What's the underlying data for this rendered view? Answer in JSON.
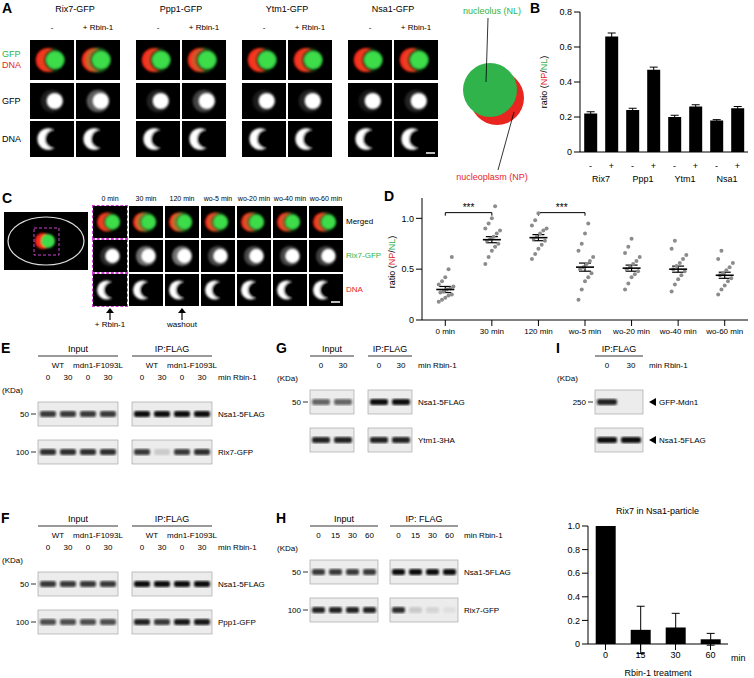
{
  "figure": {
    "A": {
      "label": "A",
      "columns": [
        {
          "title": "Rix7-GFP",
          "lanes": [
            "-",
            "+ Rbin-1"
          ]
        },
        {
          "title": "Ppp1-GFP",
          "lanes": [
            "-",
            "+ Rbin-1"
          ]
        },
        {
          "title": "Ytm1-GFP",
          "lanes": [
            "-",
            "+ Rbin-1"
          ]
        },
        {
          "title": "Nsa1-GFP",
          "lanes": [
            "-",
            "+ Rbin-1"
          ]
        }
      ],
      "rows": [
        [
          {
            "text": "GFP",
            "color": "#2fb34a"
          },
          {
            "text": "DNA",
            "color": "#e8251f"
          }
        ],
        [
          {
            "text": "GFP",
            "color": "#000000"
          }
        ],
        [
          {
            "text": "DNA",
            "color": "#000000"
          }
        ]
      ],
      "schematic": [
        {
          "text": "nucleolus (NL)",
          "color": "#2fb34a"
        },
        {
          "text": "nucleoplasm (NP)",
          "color": "#e8251f"
        }
      ]
    },
    "C": {
      "label": "C",
      "times": [
        "0 min",
        "30 min",
        "120 min",
        "wo-5 min",
        "wo-20 min",
        "wo-40 min",
        "wo-60 min"
      ],
      "rows": [
        {
          "text": "Merged",
          "color": "#000000"
        },
        {
          "text": "Rix7-GFP",
          "color": "#2fb34a"
        },
        {
          "text": "DNA",
          "color": "#e8251f"
        }
      ],
      "arrows": [
        {
          "text": "+ Rbin-1",
          "at": "0 min"
        },
        {
          "text": "washout",
          "at": "120 min"
        }
      ]
    },
    "blots": [
      {
        "label": "E",
        "groups": [
          {
            "title": "Input",
            "conditions": [
              {
                "name": "WT",
                "lanes": [
                  0,
                  30
                ]
              },
              {
                "name": "mdn1-F1093L",
                "lanes": [
                  0,
                  30
                ]
              }
            ]
          },
          {
            "title": "IP:FLAG",
            "conditions": [
              {
                "name": "WT",
                "lanes": [
                  0,
                  30
                ]
              },
              {
                "name": "mdn1-F1093L",
                "lanes": [
                  0,
                  30
                ]
              }
            ]
          }
        ],
        "lane_unit": "min Rbin-1",
        "kda": "(KDa)",
        "rows": [
          {
            "name": "Nsa1-5FLAG",
            "ladder": 50,
            "bands": [
              0.8,
              0.8,
              0.8,
              0.8,
              1,
              1,
              1,
              1
            ]
          },
          {
            "name": "Rix7-GFP",
            "ladder": 100,
            "bands": [
              0.85,
              0.85,
              0.85,
              0.85,
              0.8,
              0.15,
              0.8,
              0.85
            ]
          }
        ]
      },
      {
        "label": "F",
        "groups": [
          {
            "title": "Input",
            "conditions": [
              {
                "name": "WT",
                "lanes": [
                  0,
                  30
                ]
              },
              {
                "name": "mdn1-F1093L",
                "lanes": [
                  0,
                  30
                ]
              }
            ]
          },
          {
            "title": "IP:FLAG",
            "conditions": [
              {
                "name": "WT",
                "lanes": [
                  0,
                  30
                ]
              },
              {
                "name": "mdn1-F1093L",
                "lanes": [
                  0,
                  30
                ]
              }
            ]
          }
        ],
        "lane_unit": "min Rbin-1",
        "kda": "(KDa)",
        "rows": [
          {
            "name": "Nsa1-5FLAG",
            "ladder": 50,
            "bands": [
              0.8,
              0.8,
              0.8,
              0.8,
              1,
              1,
              1,
              1
            ]
          },
          {
            "name": "Ppp1-GFP",
            "ladder": 100,
            "bands": [
              0.7,
              0.7,
              0.7,
              0.7,
              0.9,
              0.8,
              0.95,
              0.95
            ]
          }
        ]
      },
      {
        "label": "G",
        "groups": [
          {
            "title": "Input",
            "lanes": [
              0,
              30
            ]
          },
          {
            "title": "IP:FLAG",
            "lanes": [
              0,
              30
            ]
          }
        ],
        "lane_unit": "min Rbin-1",
        "kda": "(KDa)",
        "rows": [
          {
            "name": "Nsa1-5FLAG",
            "ladder": 50,
            "bands": [
              0.6,
              0.6,
              1,
              1
            ]
          },
          {
            "name": "Ytm1-3HA",
            "bands": [
              0.9,
              0.9,
              0.9,
              0.9
            ]
          }
        ]
      },
      {
        "label": "H",
        "groups": [
          {
            "title": "Input",
            "lanes": [
              0,
              15,
              30,
              60
            ]
          },
          {
            "title": "IP: FLAG",
            "lanes": [
              0,
              15,
              30,
              60
            ]
          }
        ],
        "lane_unit": "min Rbin-1",
        "kda": "(KDa)",
        "rows": [
          {
            "name": "Nsa1-5FLAG",
            "ladder": 50,
            "bands": [
              0.8,
              0.8,
              0.8,
              0.8,
              1,
              1,
              1,
              1
            ]
          },
          {
            "name": "Rix7-GFP",
            "ladder": 100,
            "bands": [
              0.9,
              0.9,
              0.9,
              0.9,
              0.85,
              0.15,
              0.1,
              0.05
            ]
          }
        ]
      },
      {
        "label": "I",
        "groups": [
          {
            "title": "IP:FLAG",
            "lanes": [
              0,
              30
            ]
          }
        ],
        "lane_unit": "min Rbin-1",
        "kda": "(KDa)",
        "rows": [
          {
            "name": "GFP-Mdn1",
            "ladder": 250,
            "bands": [
              0.9,
              0
            ]
          },
          {
            "name": "Nsa1-5FLAG",
            "bands": [
              1,
              1
            ]
          }
        ]
      }
    ]
  },
  "chart_data": [
    {
      "panel": "B",
      "type": "bar",
      "ylabel": [
        {
          "text": "ratio (",
          "color": "#000000"
        },
        {
          "text": "NP",
          "color": "#e8251f"
        },
        {
          "text": "/",
          "color": "#000000"
        },
        {
          "text": "NL",
          "color": "#2fb34a"
        },
        {
          "text": ")",
          "color": "#000000"
        }
      ],
      "categories": [
        "-",
        "+",
        "-",
        "+",
        "-",
        "+",
        "-",
        "+"
      ],
      "groups": [
        "Rix7",
        "Ppp1",
        "Ytm1",
        "Nsa1"
      ],
      "values": [
        0.22,
        0.66,
        0.24,
        0.47,
        0.2,
        0.26,
        0.18,
        0.25
      ],
      "errors": [
        0.01,
        0.02,
        0.01,
        0.015,
        0.01,
        0.01,
        0.005,
        0.01
      ],
      "color": "#000000",
      "ylim": [
        0,
        0.8
      ],
      "yticks": [
        0,
        0.2,
        0.4,
        0.6,
        0.8
      ]
    },
    {
      "panel": "D",
      "type": "scatter",
      "ylabel": [
        {
          "text": "ratio (",
          "color": "#000000"
        },
        {
          "text": "NP",
          "color": "#e8251f"
        },
        {
          "text": "/",
          "color": "#000000"
        },
        {
          "text": "NL",
          "color": "#2fb34a"
        },
        {
          "text": ")",
          "color": "#000000"
        }
      ],
      "categories": [
        "0 min",
        "30 min",
        "120 min",
        "wo-5 min",
        "wo-20 min",
        "wo-40 min",
        "wo-60 min"
      ],
      "points": [
        [
          0.18,
          0.2,
          0.22,
          0.24,
          0.25,
          0.27,
          0.28,
          0.3,
          0.31,
          0.33,
          0.35,
          0.38,
          0.42,
          0.5,
          0.62
        ],
        [
          0.55,
          0.62,
          0.68,
          0.72,
          0.75,
          0.78,
          0.8,
          0.82,
          0.85,
          0.88,
          0.9,
          0.95,
          1.0,
          1.12
        ],
        [
          0.6,
          0.65,
          0.7,
          0.74,
          0.78,
          0.8,
          0.82,
          0.85,
          0.88,
          0.9,
          0.93,
          0.98,
          1.05
        ],
        [
          0.2,
          0.3,
          0.38,
          0.42,
          0.46,
          0.5,
          0.52,
          0.55,
          0.58,
          0.62,
          0.68,
          0.75,
          0.85,
          0.95
        ],
        [
          0.3,
          0.36,
          0.42,
          0.45,
          0.48,
          0.5,
          0.52,
          0.55,
          0.58,
          0.62,
          0.66,
          0.72,
          0.8
        ],
        [
          0.28,
          0.35,
          0.4,
          0.44,
          0.48,
          0.5,
          0.53,
          0.56,
          0.6,
          0.64,
          0.7,
          0.78
        ],
        [
          0.25,
          0.3,
          0.34,
          0.38,
          0.41,
          0.44,
          0.46,
          0.49,
          0.52,
          0.56,
          0.6,
          0.68
        ]
      ],
      "means": [
        0.3,
        0.79,
        0.81,
        0.52,
        0.51,
        0.5,
        0.44
      ],
      "errors": [
        0.03,
        0.03,
        0.03,
        0.04,
        0.03,
        0.03,
        0.03
      ],
      "color": "#8c8c8c",
      "ylim": [
        0,
        1.2
      ],
      "yticks": [
        0,
        0.5,
        {
          "value": 1,
          "label": "1.0"
        }
      ],
      "annotations": [
        {
          "text": "***",
          "from": "0 min",
          "to": "30 min"
        },
        {
          "text": "***",
          "from": "120 min",
          "to": "wo-5 min"
        }
      ]
    },
    {
      "type": "bar",
      "title": "Rix7 in Nsa1-particle",
      "categories": [
        "0",
        "15",
        "30",
        "60"
      ],
      "values": [
        1,
        0.12,
        0.14,
        0.04
      ],
      "errors": [
        0,
        0.2,
        0.12,
        0.05
      ],
      "xlabel": "Rbin-1 treatment",
      "annotations": [
        {
          "text": "min"
        }
      ],
      "color": "#000000",
      "ylim": [
        0,
        1
      ],
      "yticks": [
        0,
        0.2,
        0.4,
        0.6,
        0.8,
        {
          "value": 1,
          "label": "1.0"
        }
      ]
    }
  ]
}
